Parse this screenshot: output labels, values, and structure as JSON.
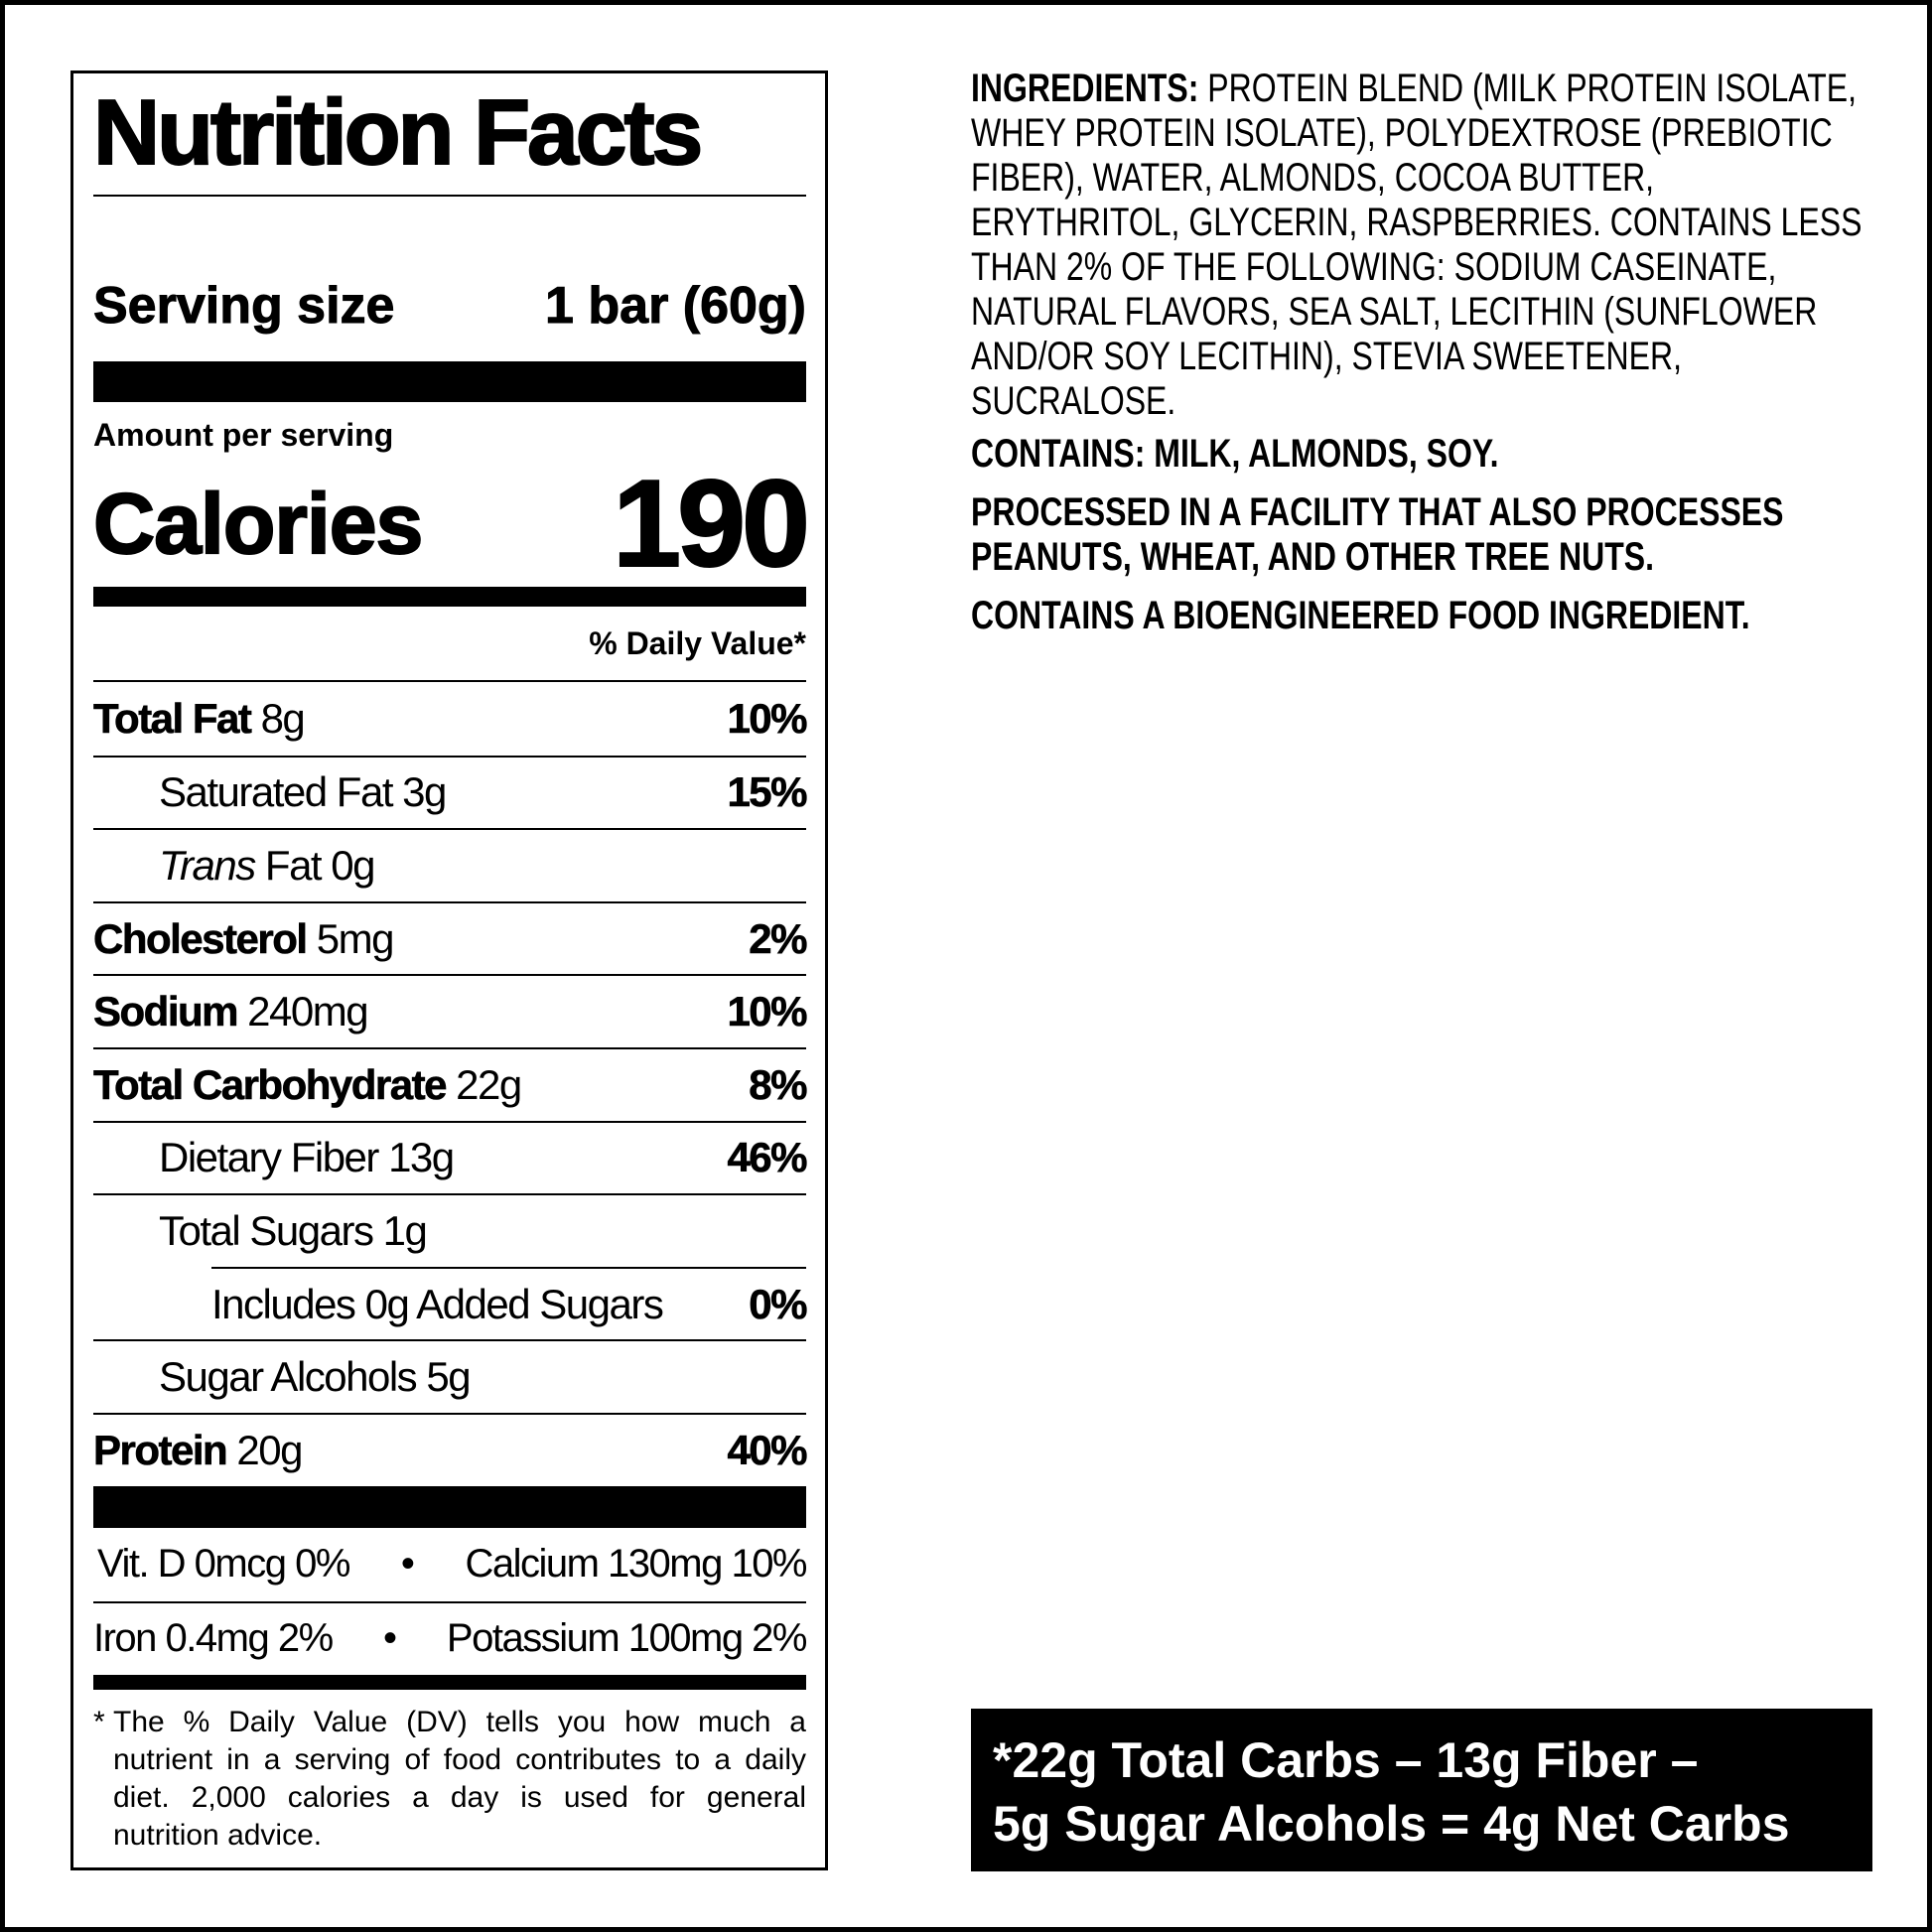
{
  "nutrition_facts": {
    "title": "Nutrition Facts",
    "serving_size_label": "Serving size",
    "serving_size": "1 bar (60g)",
    "amount_per_serving": "Amount per serving",
    "calories_label": "Calories",
    "calories": 190,
    "daily_value_header": "% Daily Value*",
    "total_fat": {
      "name": "Total Fat",
      "amount": "8g",
      "dv": "10%"
    },
    "saturated_fat": {
      "name": "Saturated Fat",
      "amount": "3g",
      "dv": "15%"
    },
    "trans_fat": {
      "name_italic": "Trans",
      "name": "Fat",
      "amount": "0g"
    },
    "cholesterol": {
      "name": "Cholesterol",
      "amount": "5mg",
      "dv": "2%"
    },
    "sodium": {
      "name": "Sodium",
      "amount": "240mg",
      "dv": "10%"
    },
    "total_carbohydrate": {
      "name": "Total Carbohydrate",
      "amount": "22g",
      "dv": "8%"
    },
    "dietary_fiber": {
      "name": "Dietary Fiber",
      "amount": "13g",
      "dv": "46%"
    },
    "total_sugars": {
      "name": "Total Sugars",
      "amount": "1g"
    },
    "added_sugars": {
      "name": "Includes 0g Added Sugars",
      "dv": "0%"
    },
    "sugar_alcohols": {
      "name": "Sugar Alcohols",
      "amount": "5g"
    },
    "protein": {
      "name": "Protein",
      "amount": "20g",
      "dv": "40%"
    },
    "separator": "•",
    "vitamin_d": "Vit. D 0mcg 0%",
    "calcium": "Calcium 130mg 10%",
    "iron": "Iron 0.4mg 2%",
    "potassium": "Potassium 100mg 2%",
    "footnote_mark": "*",
    "footnote": "The % Daily Value (DV) tells you how much a nutrient in a serving of food contributes to a daily diet. 2,000 calories a day is used for general nutrition advice."
  },
  "ingredients": {
    "label": "INGREDIENTS:",
    "text": "PROTEIN BLEND (MILK PROTEIN ISOLATE, WHEY PROTEIN ISOLATE), POLYDEXTROSE (PREBIOTIC FIBER), WATER, ALMONDS, COCOA BUTTER, ERYTHRITOL, GLYCERIN, RASPBERRIES. CONTAINS LESS THAN 2% OF THE FOLLOWING: SODIUM CASEINATE, NATURAL FLAVORS, SEA SALT, LECITHIN (SUNFLOWER AND/OR SOY LECITHIN), STEVIA SWEETENER, SUCRALOSE.",
    "contains": "CONTAINS: MILK, ALMONDS, SOY.",
    "facility": "PROCESSED IN A FACILITY THAT ALSO PROCESSES PEANUTS, WHEAT, AND OTHER TREE NUTS.",
    "bioengineered": "CONTAINS A BIOENGINEERED FOOD INGREDIENT."
  },
  "net_carbs": {
    "lines": [
      "*22g Total Carbs – 13g Fiber –",
      "5g Sugar Alcohols = 4g Net Carbs"
    ]
  }
}
